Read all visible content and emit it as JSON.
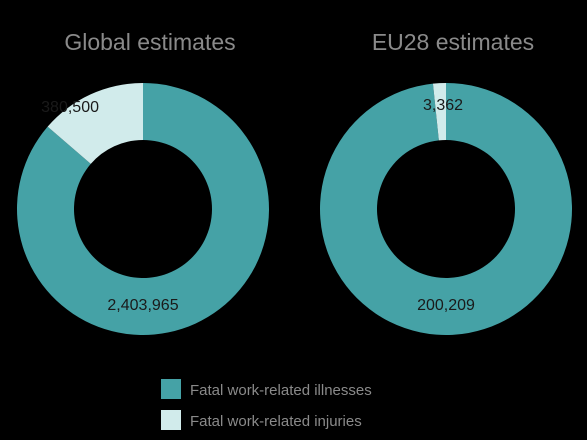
{
  "colors": {
    "background": "#000000",
    "illnesses": "#45a2a6",
    "injuries": "#d1ebeb"
  },
  "legend": {
    "items": [
      {
        "label": "Fatal work-related illnesses",
        "color": "#45a2a6"
      },
      {
        "label": "Fatal work-related injuries",
        "color": "#d1ebeb"
      }
    ]
  },
  "chart_data": [
    {
      "type": "pie",
      "donut": true,
      "title": "Global estimates",
      "categories": [
        "Fatal work-related illnesses",
        "Fatal work-related injuries"
      ],
      "values": [
        2403965,
        380500
      ],
      "labels": [
        "2,403,965",
        "380,500"
      ]
    },
    {
      "type": "pie",
      "donut": true,
      "title": "EU28 estimates",
      "categories": [
        "Fatal work-related illnesses",
        "Fatal work-related injuries"
      ],
      "values": [
        200209,
        3362
      ],
      "labels": [
        "200,209",
        "3,362"
      ]
    }
  ]
}
